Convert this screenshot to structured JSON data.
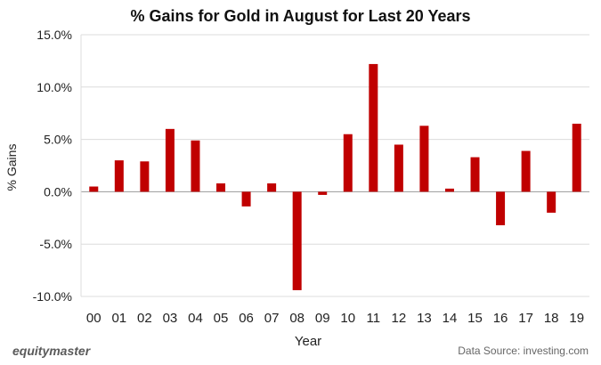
{
  "chart_data": {
    "type": "bar",
    "title": "% Gains for Gold in August for Last 20 Years",
    "xlabel": "Year",
    "ylabel": "% Gains",
    "ylim": [
      -10,
      15
    ],
    "yticks": [
      15,
      10,
      5,
      0,
      -5,
      -10
    ],
    "ytick_labels": [
      "15.0%",
      "10.0%",
      "5.0%",
      "0.0%",
      "-5.0%",
      "-10.0%"
    ],
    "categories": [
      "00",
      "01",
      "02",
      "03",
      "04",
      "05",
      "06",
      "07",
      "08",
      "09",
      "10",
      "11",
      "12",
      "13",
      "14",
      "15",
      "16",
      "17",
      "18",
      "19"
    ],
    "values": [
      0.5,
      3.0,
      2.9,
      6.0,
      4.9,
      0.8,
      -1.4,
      0.8,
      -9.4,
      -0.3,
      5.5,
      12.2,
      4.5,
      6.3,
      0.3,
      3.3,
      -3.2,
      3.9,
      -2.0,
      6.5
    ],
    "bar_color": "#c00000",
    "grid": true
  },
  "branding": "equitymaster",
  "source": "Data Source: investing.com"
}
